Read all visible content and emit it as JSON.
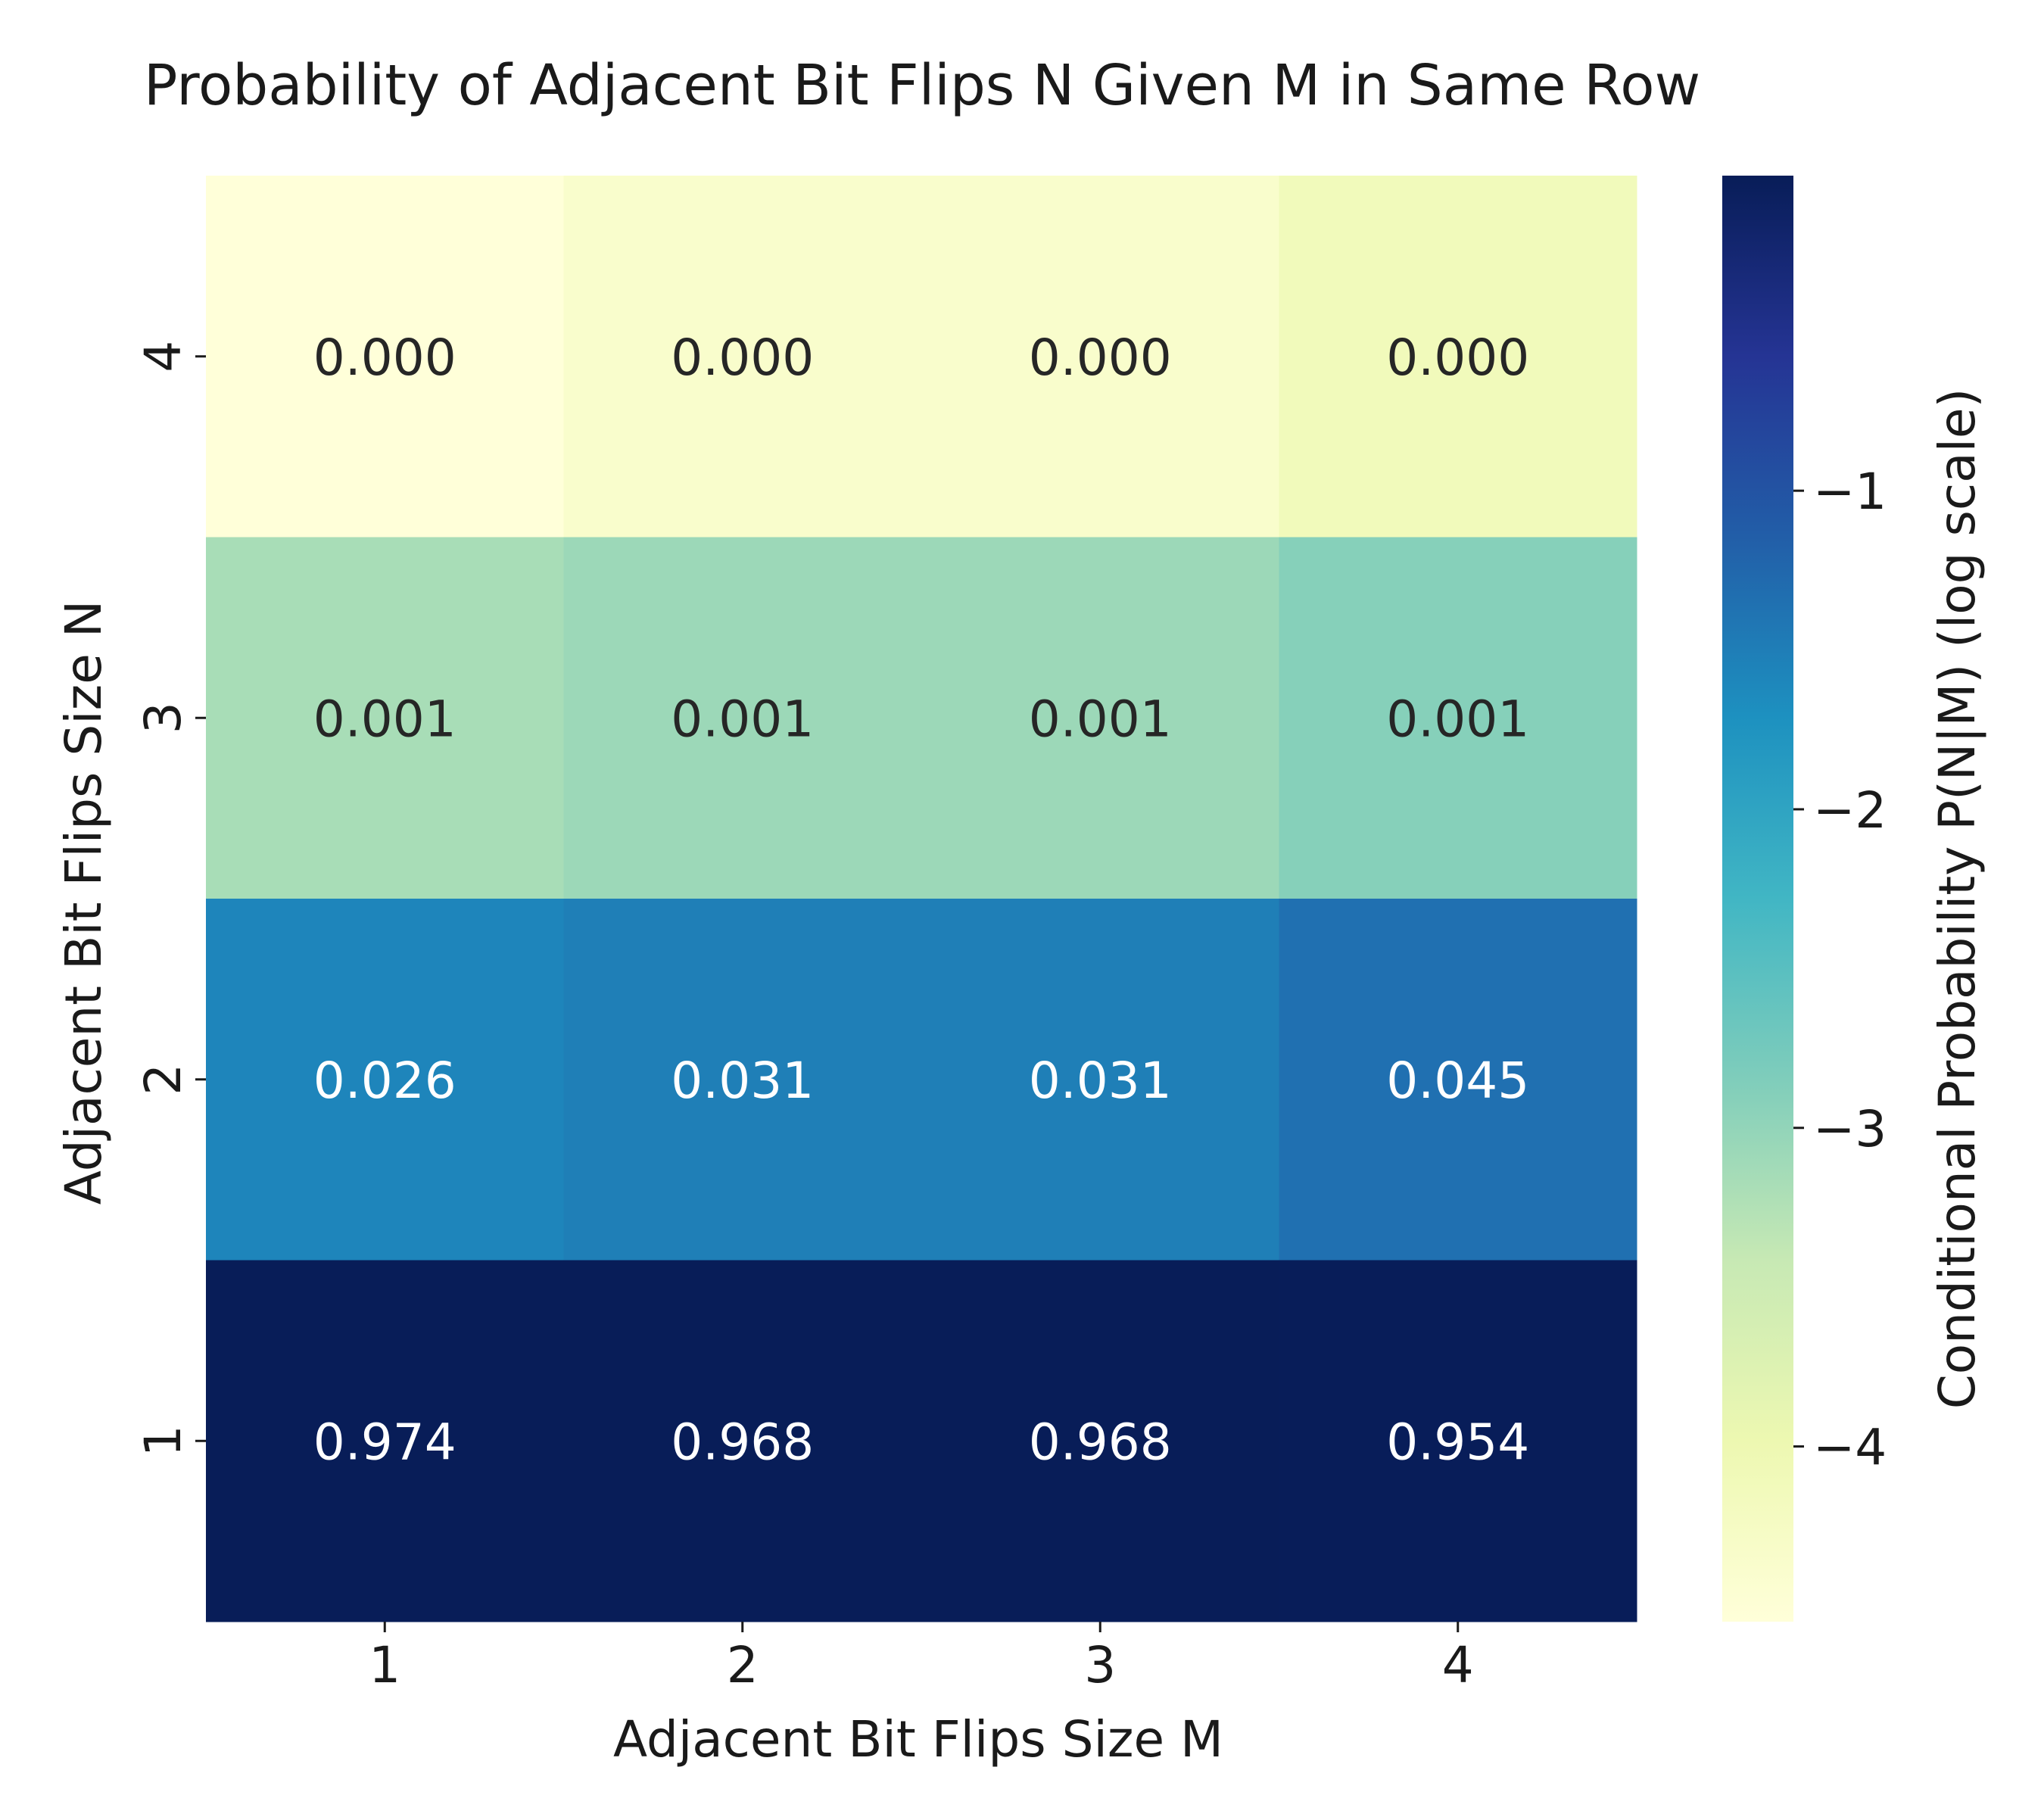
{
  "chart_data": {
    "type": "heatmap",
    "title": "Probability of Adjacent Bit Flips N Given M in Same Row",
    "xlabel": "Adjacent Bit Flips Size M",
    "ylabel": "Adjacent Bit Flips Size N",
    "x_categories": [
      "1",
      "2",
      "3",
      "4"
    ],
    "y_categories": [
      "4",
      "3",
      "2",
      "1"
    ],
    "values": [
      [
        2.82e-05,
        4.36e-05,
        4.36e-05,
        7.59e-05
      ],
      [
        0.000676,
        0.000832,
        0.000832,
        0.00126
      ],
      [
        0.026,
        0.031,
        0.031,
        0.045
      ],
      [
        0.974,
        0.968,
        0.968,
        0.954
      ]
    ],
    "cell_labels": [
      [
        "0.000",
        "0.000",
        "0.000",
        "0.000"
      ],
      [
        "0.001",
        "0.001",
        "0.001",
        "0.001"
      ],
      [
        "0.026",
        "0.031",
        "0.031",
        "0.045"
      ],
      [
        "0.974",
        "0.968",
        "0.968",
        "0.954"
      ]
    ],
    "colorbar": {
      "label": "Conditional Probability P(N|M) (log scale)",
      "scale": "log10",
      "range": [
        -4.55,
        -0.011
      ],
      "ticks": [
        -1,
        -2,
        -3,
        -4
      ],
      "tick_labels": [
        "−1",
        "−2",
        "−3",
        "−4"
      ],
      "colormap": [
        "#ffffd9",
        "#edf8b1",
        "#c7e9b4",
        "#7fcdbb",
        "#41b6c4",
        "#1d91c0",
        "#225ea8",
        "#253494",
        "#081d58"
      ]
    },
    "grid": false,
    "legend": "colorbar-right"
  }
}
